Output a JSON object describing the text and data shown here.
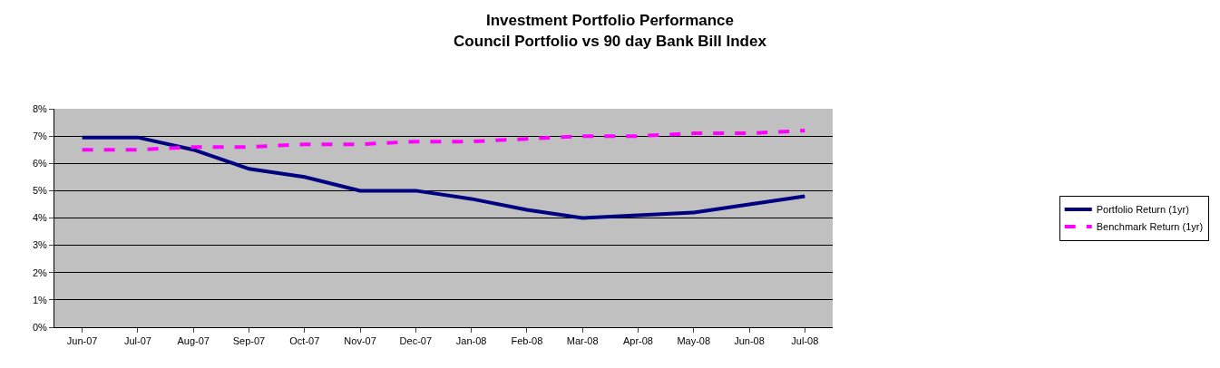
{
  "chart_data": {
    "type": "line",
    "title": "Investment Portfolio Performance\nCouncil Portfolio vs 90 day Bank Bill Index",
    "categories": [
      "Jun-07",
      "Jul-07",
      "Aug-07",
      "Sep-07",
      "Oct-07",
      "Nov-07",
      "Dec-07",
      "Jan-08",
      "Feb-08",
      "Mar-08",
      "Apr-08",
      "May-08",
      "Jun-08",
      "Jul-08"
    ],
    "series": [
      {
        "name": "Portfolio Return (1yr)",
        "color": "#000080",
        "line_style": "solid",
        "values": [
          6.95,
          6.95,
          6.5,
          5.8,
          5.5,
          5.0,
          5.0,
          4.7,
          4.3,
          4.0,
          4.1,
          4.2,
          4.5,
          4.8
        ]
      },
      {
        "name": "Benchmark Return (1yr)",
        "color": "#ff00ff",
        "line_style": "dashed",
        "values": [
          6.5,
          6.5,
          6.6,
          6.6,
          6.7,
          6.7,
          6.8,
          6.8,
          6.9,
          7.0,
          7.0,
          7.1,
          7.1,
          7.2
        ]
      }
    ],
    "ylim": [
      0,
      8
    ],
    "yticks": [
      {
        "value": 0,
        "label": "0%"
      },
      {
        "value": 1,
        "label": "1%"
      },
      {
        "value": 2,
        "label": "2%"
      },
      {
        "value": 3,
        "label": "3%"
      },
      {
        "value": 4,
        "label": "4%"
      },
      {
        "value": 5,
        "label": "5%"
      },
      {
        "value": 6,
        "label": "6%"
      },
      {
        "value": 7,
        "label": "7%"
      },
      {
        "value": 8,
        "label": "8%"
      }
    ],
    "grid": "y",
    "legend": "right",
    "marker": "none"
  }
}
